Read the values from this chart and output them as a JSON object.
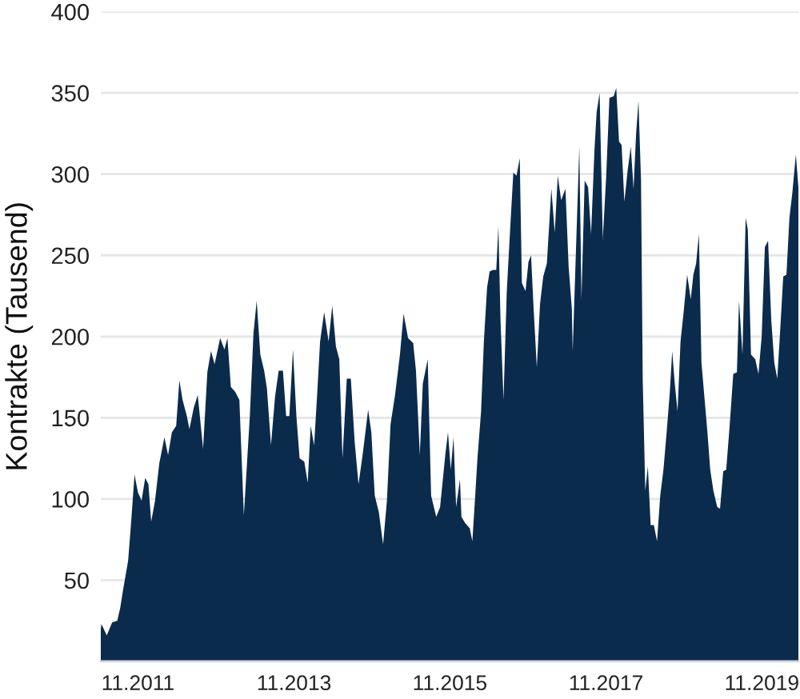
{
  "chart_data": {
    "type": "area",
    "ylabel": "Kontrakte (Tausend)",
    "color": "#0b2b4c",
    "x": [
      "2011-05-11",
      "2011-05-14",
      "2011-06-08",
      "2011-07-03",
      "2011-07-27",
      "2011-08-10",
      "2011-08-22",
      "2011-09-16",
      "2011-09-29",
      "2011-10-16",
      "2011-11-01",
      "2011-11-18",
      "2011-12-05",
      "2011-12-20",
      "2012-01-02",
      "2012-01-20",
      "2012-02-09",
      "2012-03-04",
      "2012-03-21",
      "2012-04-08",
      "2012-04-28",
      "2012-05-13",
      "2012-05-28",
      "2012-06-17",
      "2012-06-29",
      "2012-07-19",
      "2012-08-07",
      "2012-09-01",
      "2012-09-21",
      "2012-10-08",
      "2012-10-25",
      "2012-11-20",
      "2012-12-10",
      "2012-12-24",
      "2013-01-09",
      "2013-01-29",
      "2013-02-18",
      "2013-03-11",
      "2013-04-08",
      "2013-04-25",
      "2013-05-10",
      "2013-05-27",
      "2013-06-14",
      "2013-06-27",
      "2013-07-16",
      "2013-08-04",
      "2013-08-21",
      "2013-09-10",
      "2013-09-25",
      "2013-10-10",
      "2013-10-27",
      "2013-11-12",
      "2013-11-27",
      "2013-12-19",
      "2014-01-04",
      "2014-01-18",
      "2014-02-03",
      "2014-02-18",
      "2014-03-03",
      "2014-03-22",
      "2014-04-12",
      "2014-04-29",
      "2014-05-16",
      "2014-06-01",
      "2014-06-16",
      "2014-07-06",
      "2014-07-25",
      "2014-08-12",
      "2014-08-30",
      "2014-09-19",
      "2014-10-14",
      "2014-10-29",
      "2014-11-14",
      "2014-12-03",
      "2014-12-23",
      "2015-01-10",
      "2015-01-27",
      "2015-02-17",
      "2015-03-12",
      "2015-03-29",
      "2015-04-19",
      "2015-05-13",
      "2015-05-26",
      "2015-06-13",
      "2015-06-27",
      "2015-07-20",
      "2015-08-05",
      "2015-08-29",
      "2015-09-16",
      "2015-10-11",
      "2015-10-23",
      "2015-11-05",
      "2015-11-18",
      "2015-11-30",
      "2015-12-18",
      "2015-12-25",
      "2016-01-12",
      "2016-02-02",
      "2016-02-14",
      "2016-02-26",
      "2016-03-09",
      "2016-03-26",
      "2016-04-08",
      "2016-04-23",
      "2016-05-05",
      "2016-05-20",
      "2016-06-05",
      "2016-06-15",
      "2016-06-25",
      "2016-07-09",
      "2016-07-24",
      "2016-08-09",
      "2016-08-24",
      "2016-09-08",
      "2016-09-23",
      "2016-10-03",
      "2016-10-20",
      "2016-11-03",
      "2016-11-15",
      "2016-11-27",
      "2016-12-12",
      "2016-12-27",
      "2017-01-11",
      "2017-01-28",
      "2017-02-18",
      "2017-03-06",
      "2017-03-20",
      "2017-04-05",
      "2017-04-25",
      "2017-05-10",
      "2017-05-25",
      "2017-05-29",
      "2017-06-14",
      "2017-06-29",
      "2017-07-09",
      "2017-07-24",
      "2017-08-09",
      "2017-08-23",
      "2017-09-08",
      "2017-09-18",
      "2017-10-02",
      "2017-10-17",
      "2017-11-02",
      "2017-11-17",
      "2017-12-07",
      "2017-12-19",
      "2018-01-01",
      "2018-01-13",
      "2018-01-26",
      "2018-02-10",
      "2018-02-25",
      "2018-03-10",
      "2018-03-22",
      "2018-04-02",
      "2018-04-14",
      "2018-04-22",
      "2018-05-04",
      "2018-05-16",
      "2018-05-29",
      "2018-06-13",
      "2018-06-28",
      "2018-07-13",
      "2018-07-28",
      "2018-08-12",
      "2018-08-27",
      "2018-09-07",
      "2018-09-19",
      "2018-10-02",
      "2018-10-16",
      "2018-11-01",
      "2018-11-16",
      "2018-12-03",
      "2018-12-15",
      "2018-12-28",
      "2019-01-10",
      "2019-01-22",
      "2019-02-04",
      "2019-02-19",
      "2019-03-04",
      "2019-03-19",
      "2019-04-06",
      "2019-04-19",
      "2019-05-04",
      "2019-05-18",
      "2019-06-03",
      "2019-06-20",
      "2019-07-07",
      "2019-07-17",
      "2019-08-02",
      "2019-08-17",
      "2019-08-27",
      "2019-09-11",
      "2019-10-01",
      "2019-10-16",
      "2019-10-31",
      "2019-11-15",
      "2019-11-30",
      "2019-12-15",
      "2019-12-29",
      "2020-01-12",
      "2020-01-24",
      "2020-02-09",
      "2020-02-24",
      "2020-03-09",
      "2020-03-23",
      "2020-04-08",
      "2020-04-20"
    ],
    "values": [
      20,
      23,
      16,
      24,
      25,
      33,
      43,
      62,
      84,
      115,
      104,
      99,
      113,
      109,
      86,
      99,
      122,
      138,
      127,
      141,
      145,
      173,
      161,
      151,
      143,
      156,
      164,
      131,
      178,
      191,
      183,
      199,
      192,
      199,
      169,
      166,
      161,
      90,
      151,
      202,
      222,
      189,
      179,
      168,
      133,
      163,
      179,
      179,
      151,
      151,
      192,
      151,
      125,
      123,
      110,
      145,
      133,
      166,
      197,
      215,
      197,
      219,
      194,
      186,
      125,
      174,
      174,
      135,
      109,
      128,
      155,
      141,
      102,
      92,
      72,
      99,
      146,
      164,
      189,
      214,
      199,
      196,
      179,
      127,
      171,
      186,
      102,
      89,
      95,
      128,
      141,
      118,
      138,
      95,
      112,
      89,
      85,
      82,
      74,
      99,
      125,
      154,
      197,
      230,
      240,
      241,
      241,
      268,
      210,
      161,
      227,
      266,
      301,
      299,
      310,
      233,
      228,
      246,
      250,
      217,
      181,
      220,
      237,
      245,
      291,
      264,
      299,
      284,
      291,
      243,
      217,
      191,
      256,
      317,
      223,
      296,
      292,
      263,
      315,
      338,
      350,
      260,
      299,
      347,
      348,
      353,
      320,
      318,
      283,
      302,
      317,
      291,
      325,
      345,
      296,
      173,
      105,
      120,
      84,
      84,
      74,
      102,
      118,
      141,
      166,
      191,
      171,
      154,
      197,
      217,
      238,
      223,
      238,
      245,
      263,
      184,
      164,
      141,
      118,
      105,
      95,
      94,
      117,
      118,
      145,
      177,
      178,
      222,
      189,
      273,
      266,
      189,
      186,
      177,
      200,
      255,
      259,
      210,
      184,
      174,
      200,
      237,
      238,
      273,
      289,
      312,
      292
    ],
    "xlim": [
      "2011-05-11",
      "2020-04-20"
    ],
    "xticks": [
      {
        "value": "2011-11-01",
        "label": "11.2011"
      },
      {
        "value": "2013-11-01",
        "label": "11.2013"
      },
      {
        "value": "2015-11-01",
        "label": "11.2015"
      },
      {
        "value": "2017-11-01",
        "label": "11.2017"
      },
      {
        "value": "2019-11-01",
        "label": "11.2019"
      }
    ],
    "ylim": [
      0,
      400
    ],
    "yticks": [
      50,
      100,
      150,
      200,
      250,
      300,
      350,
      400
    ],
    "grid": "y"
  }
}
